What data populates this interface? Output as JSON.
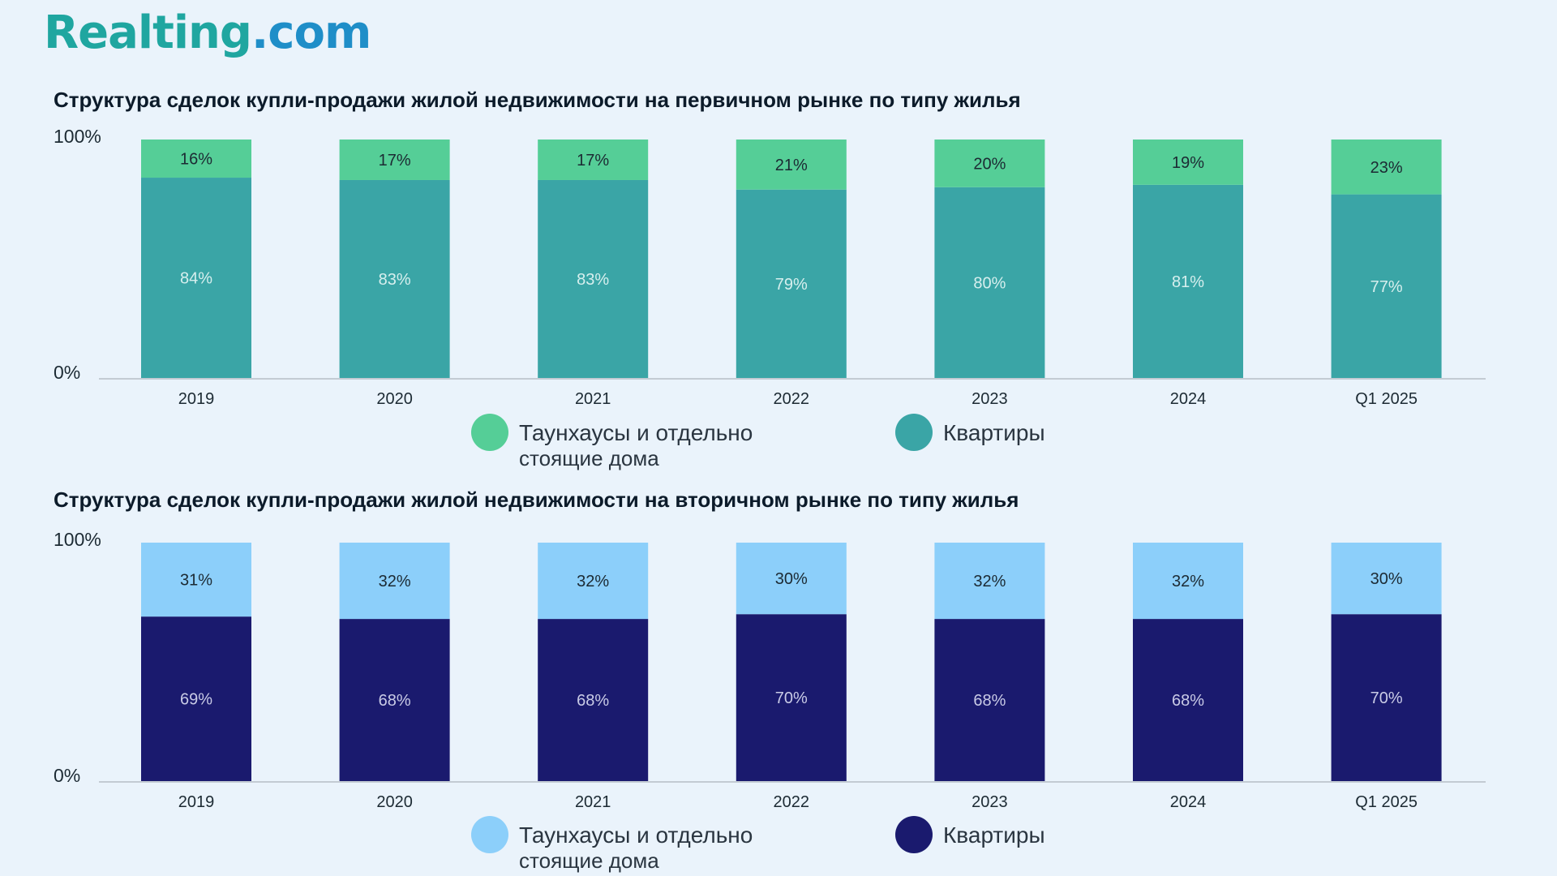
{
  "logo": {
    "main": "Realting",
    "suffix": ".com"
  },
  "chart_data": [
    {
      "type": "bar",
      "stacked": true,
      "title": "Структура сделок купли-продажи жилой недвижимости на первичном рынке по типу жилья",
      "ytick_top": "100%",
      "ytick_bottom": "0%",
      "ylim": [
        0,
        100
      ],
      "categories": [
        "2019",
        "2020",
        "2021",
        "2022",
        "2023",
        "2024",
        "Q1 2025"
      ],
      "series": [
        {
          "name": "Квартиры",
          "values": [
            84,
            83,
            83,
            79,
            80,
            81,
            77
          ],
          "labels": [
            "84%",
            "83%",
            "83%",
            "79%",
            "80%",
            "81%",
            "77%"
          ],
          "color": "#3aa5a6",
          "label_color": "#d7efee"
        },
        {
          "name": "Таунхаусы и отдельно стоящие дома",
          "values": [
            16,
            17,
            17,
            21,
            20,
            19,
            23
          ],
          "labels": [
            "16%",
            "17%",
            "17%",
            "21%",
            "20%",
            "19%",
            "23%"
          ],
          "color": "#55ce97",
          "label_color": "#1c2a33"
        }
      ],
      "legend": [
        {
          "line1": "Таунхаусы и отдельно",
          "line2": "стоящие дома",
          "color": "#55ce97"
        },
        {
          "line1": "Квартиры",
          "line2": "",
          "color": "#3aa5a6"
        }
      ]
    },
    {
      "type": "bar",
      "stacked": true,
      "title": "Структура сделок купли-продажи жилой недвижимости на вторичном рынке по типу жилья",
      "ytick_top": "100%",
      "ytick_bottom": "0%",
      "ylim": [
        0,
        100
      ],
      "categories": [
        "2019",
        "2020",
        "2021",
        "2022",
        "2023",
        "2024",
        "Q1 2025"
      ],
      "series": [
        {
          "name": "Квартиры",
          "values": [
            69,
            68,
            68,
            70,
            68,
            68,
            70
          ],
          "labels": [
            "69%",
            "68%",
            "68%",
            "70%",
            "68%",
            "68%",
            "70%"
          ],
          "color": "#1a1a6e",
          "label_color": "#c9cbe6"
        },
        {
          "name": "Таунхаусы и отдельно стоящие дома",
          "values": [
            31,
            32,
            32,
            30,
            32,
            32,
            30
          ],
          "labels": [
            "31%",
            "32%",
            "32%",
            "30%",
            "32%",
            "32%",
            "30%"
          ],
          "color": "#8ccffa",
          "label_color": "#1c2a33"
        }
      ],
      "legend": [
        {
          "line1": "Таунхаусы и отдельно",
          "line2": "стоящие дома",
          "color": "#8ccffa"
        },
        {
          "line1": "Квартиры",
          "line2": "",
          "color": "#1a1a6e"
        }
      ]
    }
  ]
}
